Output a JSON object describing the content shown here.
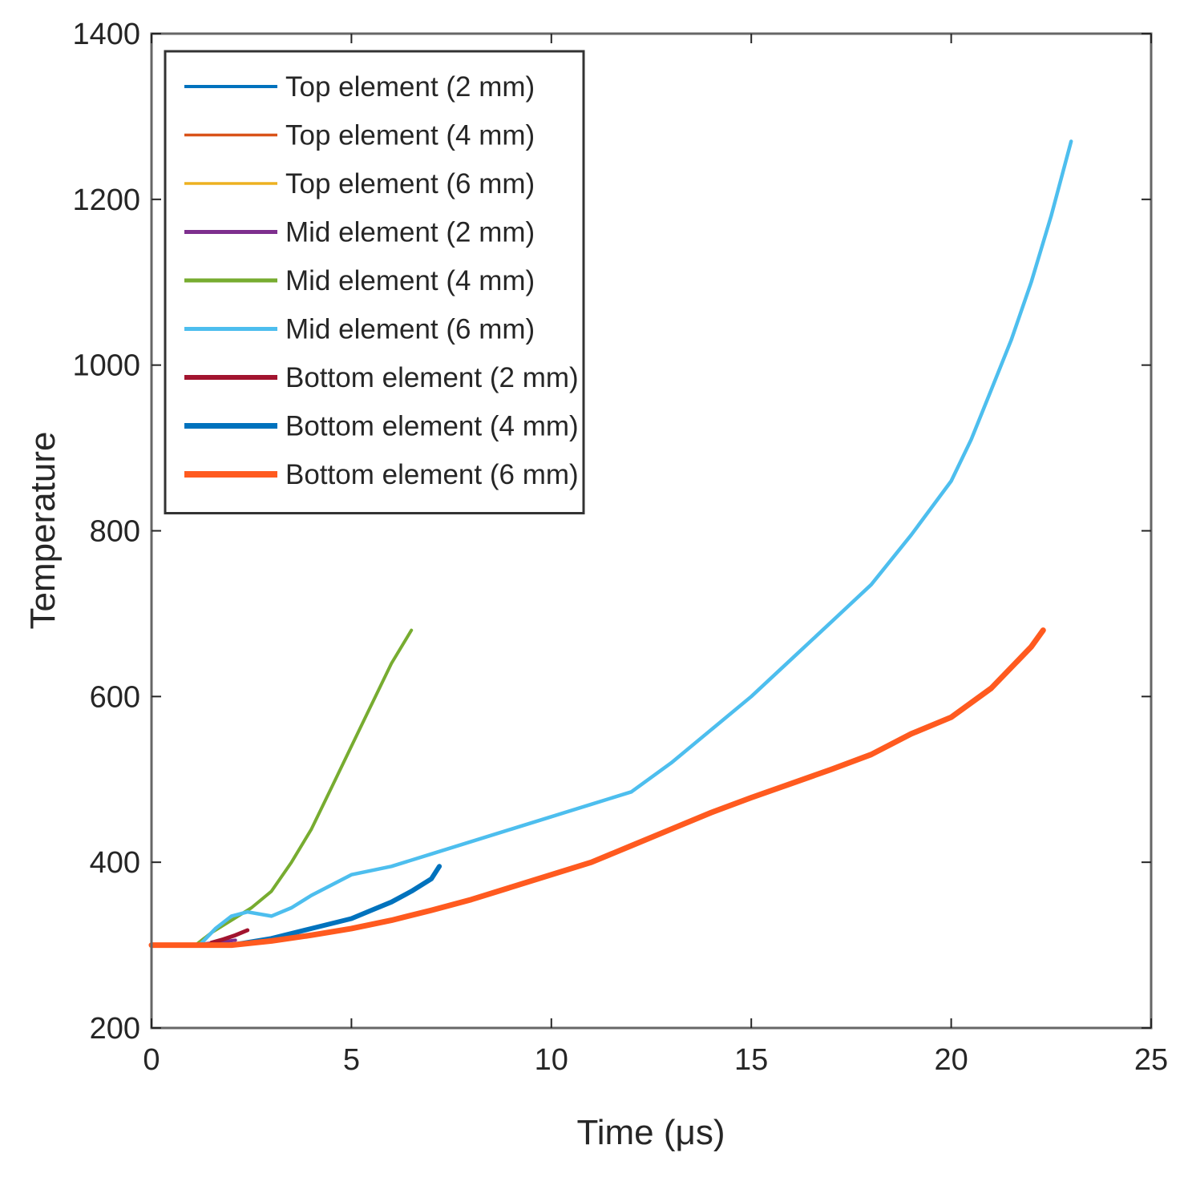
{
  "chart_data": {
    "type": "line",
    "title": "",
    "xlabel": "Time (μs)",
    "ylabel": "Temperature",
    "xlim": [
      0,
      25
    ],
    "ylim": [
      200,
      1400
    ],
    "xticks": [
      "0",
      "5",
      "10",
      "15",
      "20",
      "25"
    ],
    "yticks": [
      "200",
      "400",
      "600",
      "800",
      "1000",
      "1200",
      "1400"
    ],
    "grid": false,
    "legend_position": "top-left",
    "series": [
      {
        "name": "Top element (2 mm)",
        "color": "#0072BD",
        "x": [],
        "y": []
      },
      {
        "name": "Top element (4 mm)",
        "color": "#D95319",
        "x": [],
        "y": []
      },
      {
        "name": "Top element (6 mm)",
        "color": "#EDB120",
        "x": [],
        "y": []
      },
      {
        "name": "Mid element (2 mm)",
        "color": "#7E2F8E",
        "x": [
          1.1,
          1.4,
          1.8,
          2.1
        ],
        "y": [
          300,
          302,
          304,
          306
        ]
      },
      {
        "name": "Mid element (4 mm)",
        "color": "#77AC30",
        "x": [
          1.1,
          1.5,
          2.0,
          2.5,
          3.0,
          3.5,
          4.0,
          4.5,
          5.0,
          5.5,
          6.0,
          6.5
        ],
        "y": [
          300,
          315,
          330,
          345,
          365,
          400,
          440,
          490,
          540,
          590,
          640,
          680
        ]
      },
      {
        "name": "Mid element (6 mm)",
        "color": "#4DBEEE",
        "x": [
          1.2,
          1.6,
          2.0,
          2.4,
          3.0,
          3.5,
          4.0,
          5.0,
          6.0,
          7.0,
          8.0,
          9.0,
          10.0,
          11.0,
          12.0,
          13.0,
          14.0,
          15.0,
          16.0,
          17.0,
          18.0,
          19.0,
          20.0,
          20.5,
          21.0,
          21.5,
          22.0,
          22.5,
          23.0
        ],
        "y": [
          300,
          320,
          335,
          340,
          335,
          345,
          360,
          385,
          395,
          410,
          425,
          440,
          455,
          470,
          485,
          520,
          560,
          600,
          645,
          690,
          735,
          795,
          860,
          910,
          970,
          1030,
          1100,
          1180,
          1270
        ]
      },
      {
        "name": "Bottom element (2 mm)",
        "color": "#A2142F",
        "x": [
          1.5,
          1.8,
          2.1,
          2.4
        ],
        "y": [
          303,
          307,
          312,
          318
        ]
      },
      {
        "name": "Bottom element (4 mm)",
        "color": "#0072BD",
        "x": [
          2.0,
          3.0,
          4.0,
          5.0,
          5.5,
          6.0,
          6.5,
          7.0,
          7.2
        ],
        "y": [
          300,
          308,
          320,
          332,
          342,
          352,
          365,
          380,
          395
        ]
      },
      {
        "name": "Bottom element (6 mm)",
        "color": "#FF5A1F",
        "x": [
          0,
          1.0,
          2.0,
          3.0,
          4.0,
          5.0,
          6.0,
          7.0,
          8.0,
          9.0,
          10.0,
          11.0,
          12.0,
          13.0,
          14.0,
          15.0,
          16.0,
          17.0,
          18.0,
          19.0,
          20.0,
          21.0,
          22.0,
          22.3
        ],
        "y": [
          300,
          300,
          300,
          305,
          312,
          320,
          330,
          342,
          355,
          370,
          385,
          400,
          420,
          440,
          460,
          478,
          495,
          512,
          530,
          555,
          575,
          610,
          660,
          680
        ]
      }
    ]
  }
}
